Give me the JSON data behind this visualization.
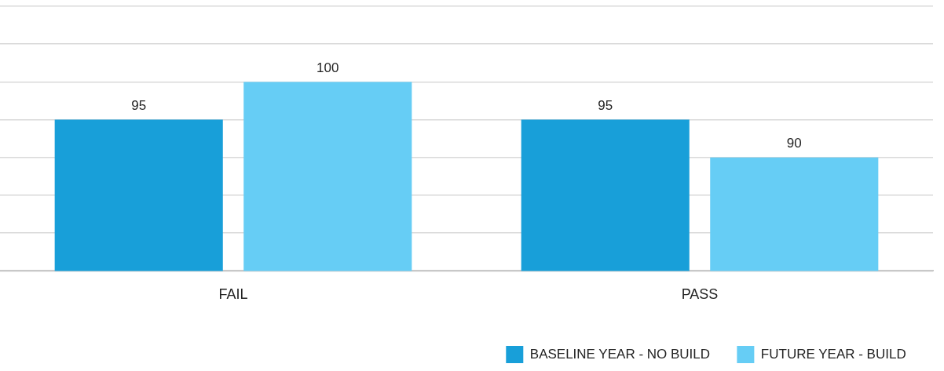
{
  "chart_data": {
    "type": "bar",
    "categories": [
      "FAIL",
      "PASS"
    ],
    "series": [
      {
        "name": "BASELINE YEAR - NO BUILD",
        "color": "#189fd9",
        "values": [
          95,
          95
        ]
      },
      {
        "name": "FUTURE YEAR - BUILD",
        "color": "#66cdf5",
        "values": [
          100,
          90
        ]
      }
    ],
    "ylim": [
      75,
      110
    ],
    "yticks": [
      {
        "value": 75,
        "label": null
      },
      {
        "value": 80,
        "label": null
      },
      {
        "value": 85,
        "label": null
      },
      {
        "value": 90,
        "label": null
      },
      {
        "value": 95,
        "label": null
      },
      {
        "value": 100,
        "label": null
      },
      {
        "value": 105,
        "label": null
      },
      {
        "value": 110,
        "label": null
      }
    ],
    "grid": "y",
    "tick_labels": "x",
    "data_labels": true,
    "legend": "bottom right"
  }
}
